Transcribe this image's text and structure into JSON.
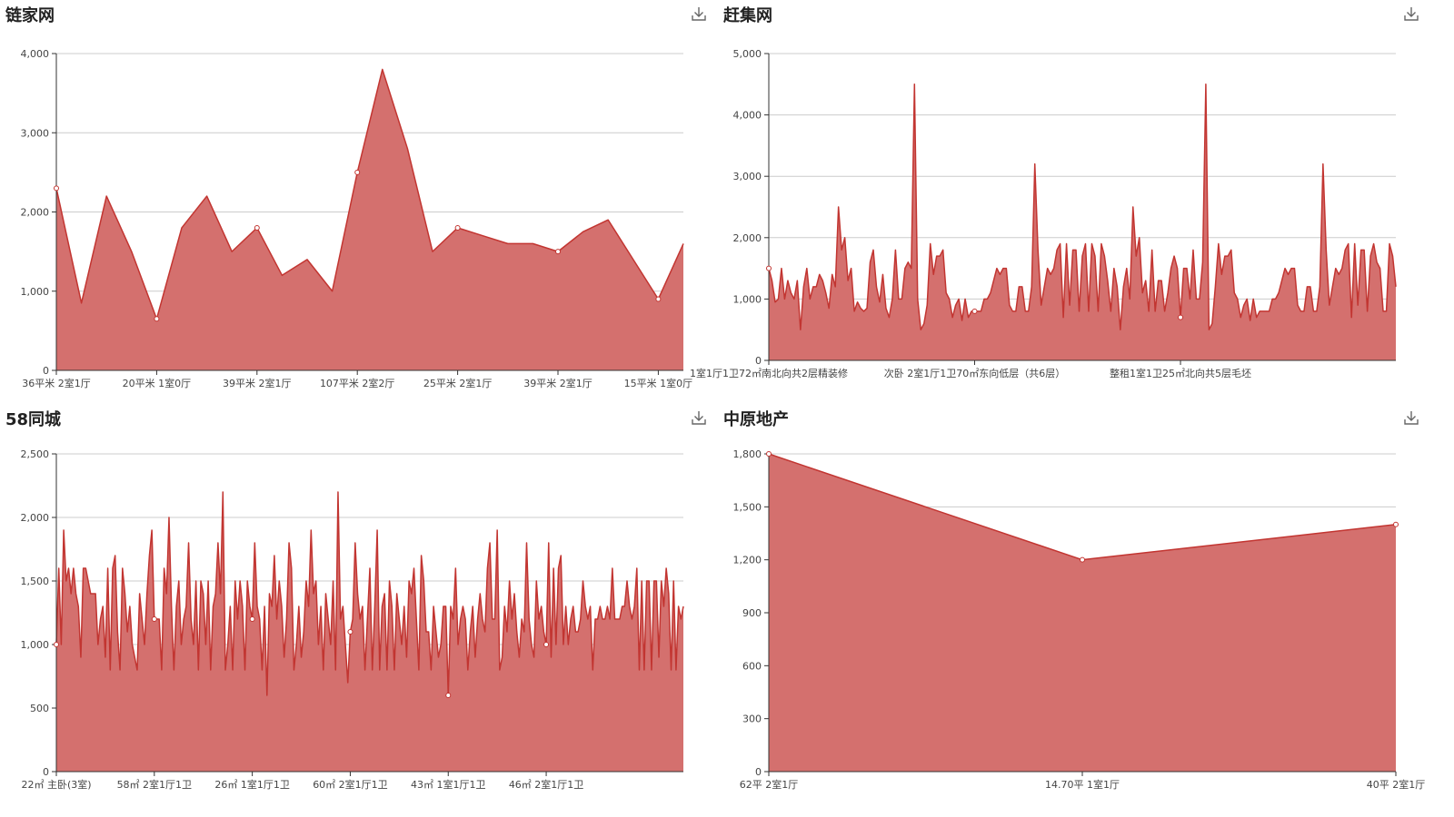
{
  "panels": [
    {
      "title": "链家网",
      "download_icon": "download-icon"
    },
    {
      "title": "赶集网",
      "download_icon": "download-icon"
    },
    {
      "title": "58同城",
      "download_icon": "download-icon"
    },
    {
      "title": "中原地产",
      "download_icon": "download-icon"
    }
  ],
  "colors": {
    "line": "#c23531",
    "area": "#d4706e",
    "grid": "#cccccc",
    "axis": "#333333"
  },
  "chart_data": [
    {
      "type": "area",
      "title": "链家网",
      "ylim": [
        0,
        4000
      ],
      "yticks": [
        0,
        1000,
        2000,
        3000,
        4000
      ],
      "ytick_labels": [
        "0",
        "1,000",
        "2,000",
        "3,000",
        "4,000"
      ],
      "x_labels": [
        {
          "index": 0,
          "text": "36平米 2室1厅"
        },
        {
          "index": 4,
          "text": "20平米 1室0厅"
        },
        {
          "index": 8,
          "text": "39平米 2室1厅"
        },
        {
          "index": 12,
          "text": "107平米 2室2厅"
        },
        {
          "index": 16,
          "text": "25平米 2室1厅"
        },
        {
          "index": 20,
          "text": "39平米 2室1厅"
        },
        {
          "index": 24,
          "text": "15平米 1室0厅"
        }
      ],
      "values": [
        2300,
        850,
        2200,
        1500,
        650,
        1800,
        2200,
        1500,
        1800,
        1200,
        1400,
        1000,
        2500,
        3800,
        2800,
        1500,
        1800,
        1700,
        1600,
        1600,
        1500,
        1750,
        1900,
        1400,
        900,
        1600
      ],
      "markers": [
        0,
        4,
        8,
        12,
        16,
        20,
        24
      ]
    },
    {
      "type": "area",
      "title": "赶集网",
      "ylim": [
        0,
        5000
      ],
      "yticks": [
        0,
        1000,
        2000,
        3000,
        4000,
        5000
      ],
      "ytick_labels": [
        "0",
        "1,000",
        "2,000",
        "3,000",
        "4,000",
        "5,000"
      ],
      "x_labels": [
        {
          "index": 0,
          "text": "1室1厅1卫72㎡南北向共2层精装修"
        },
        {
          "index": 65,
          "text": "次卧 2室1厅1卫70㎡东向低层（共6层）"
        },
        {
          "index": 130,
          "text": "整租1室1卫25㎡北向共5层毛坯"
        }
      ],
      "values": [
        1500,
        1300,
        950,
        1000,
        1500,
        1000,
        1300,
        1100,
        1000,
        1300,
        500,
        1200,
        1500,
        1000,
        1200,
        1200,
        1400,
        1300,
        1100,
        850,
        1400,
        1200,
        2500,
        1800,
        2000,
        1300,
        1500,
        800,
        950,
        850,
        800,
        850,
        1600,
        1800,
        1200,
        950,
        1400,
        850,
        700,
        1000,
        1800,
        1000,
        1000,
        1500,
        1600,
        1500,
        4500,
        1000,
        500,
        600,
        900,
        1900,
        1400,
        1700,
        1700,
        1800,
        1100,
        1000,
        700,
        900,
        1000,
        650,
        1000,
        700,
        800,
        800,
        800,
        800,
        1000,
        1000,
        1100,
        1300,
        1500,
        1400,
        1500,
        1500,
        900,
        800,
        800,
        1200,
        1200,
        800,
        800,
        1200,
        3200,
        1800,
        900,
        1200,
        1500,
        1400,
        1500,
        1800,
        1900,
        700,
        1900,
        900,
        1800,
        1800,
        800,
        1700,
        1900,
        800,
        1900,
        1700,
        800,
        1900,
        1700,
        1300,
        800,
        1500,
        1200,
        500,
        1200,
        1500,
        1000,
        2500,
        1700,
        2000,
        1100,
        1300,
        800,
        1800,
        800,
        1300,
        1300,
        800,
        1100,
        1500,
        1700,
        1500,
        700,
        1500,
        1500,
        1000,
        1800,
        1000,
        1000,
        1600,
        4500,
        500,
        600,
        1200,
        1900,
        1400,
        1700,
        1700,
        1800,
        1100,
        1000,
        700,
        900,
        1000,
        650,
        1000,
        700,
        800,
        800,
        800,
        800,
        1000,
        1000,
        1100,
        1300,
        1500,
        1400,
        1500,
        1500,
        900,
        800,
        800,
        1200,
        1200,
        800,
        800,
        1200,
        3200,
        1800,
        900,
        1200,
        1500,
        1400,
        1500,
        1800,
        1900,
        700,
        1900,
        900,
        1800,
        1800,
        800,
        1700,
        1900,
        1600,
        1500,
        800,
        800,
        1900,
        1700,
        1200
      ],
      "markers": [
        0,
        65,
        130
      ]
    },
    {
      "type": "area",
      "title": "58同城",
      "ylim": [
        0,
        2500
      ],
      "yticks": [
        0,
        500,
        1000,
        1500,
        2000,
        2500
      ],
      "ytick_labels": [
        "0",
        "500",
        "1,000",
        "1,500",
        "2,000",
        "2,500"
      ],
      "x_labels": [
        {
          "index": 0,
          "text": "22㎡ 主卧(3室)"
        },
        {
          "index": 40,
          "text": "58㎡ 2室1厅1卫"
        },
        {
          "index": 80,
          "text": "26㎡ 1室1厅1卫"
        },
        {
          "index": 120,
          "text": "60㎡ 2室1厅1卫"
        },
        {
          "index": 160,
          "text": "43㎡ 1室1厅1卫"
        },
        {
          "index": 200,
          "text": "46㎡ 2室1厅1卫"
        }
      ],
      "values": [
        1000,
        1600,
        1000,
        1900,
        1500,
        1600,
        1400,
        1600,
        1400,
        1300,
        900,
        1600,
        1600,
        1500,
        1400,
        1400,
        1400,
        1000,
        1200,
        1300,
        900,
        1600,
        800,
        1600,
        1700,
        1100,
        800,
        1600,
        1400,
        1100,
        1300,
        1000,
        900,
        800,
        1400,
        1200,
        1000,
        1400,
        1700,
        1900,
        1200,
        1200,
        1200,
        800,
        1600,
        1400,
        2000,
        1300,
        800,
        1300,
        1500,
        1000,
        1200,
        1300,
        1800,
        1200,
        1000,
        1500,
        800,
        1500,
        1400,
        1000,
        1500,
        800,
        1300,
        1400,
        1800,
        1400,
        2200,
        800,
        1000,
        1300,
        800,
        1500,
        1200,
        1500,
        1300,
        800,
        1500,
        1300,
        1200,
        1800,
        1300,
        1200,
        800,
        1300,
        600,
        1400,
        1300,
        1700,
        1200,
        1500,
        1300,
        900,
        1200,
        1800,
        1600,
        800,
        1000,
        1300,
        900,
        1100,
        1500,
        1300,
        1900,
        1400,
        1500,
        1000,
        1300,
        800,
        1400,
        1200,
        1000,
        1500,
        800,
        2200,
        1200,
        1300,
        1000,
        700,
        1100,
        1200,
        1800,
        1400,
        1200,
        1300,
        800,
        1200,
        1600,
        800,
        1300,
        1900,
        800,
        1300,
        1400,
        800,
        1500,
        1300,
        800,
        1400,
        1200,
        1000,
        1300,
        900,
        1500,
        1400,
        1600,
        1200,
        800,
        1700,
        1500,
        1100,
        1100,
        800,
        1300,
        1100,
        900,
        1000,
        1300,
        1300,
        600,
        1300,
        1200,
        1600,
        1000,
        1200,
        1300,
        1200,
        800,
        1100,
        1300,
        900,
        1200,
        1400,
        1200,
        1100,
        1600,
        1800,
        1200,
        1200,
        1900,
        800,
        900,
        1300,
        1100,
        1500,
        1200,
        1400,
        1100,
        900,
        1200,
        1100,
        1800,
        1200,
        1000,
        900,
        1500,
        1200,
        1300,
        1100,
        1000,
        1800,
        900,
        1600,
        1000,
        1600,
        1700,
        1000,
        1300,
        1000,
        1200,
        1300,
        1100,
        1100,
        1200,
        1500,
        1300,
        1200,
        1300,
        800,
        1200,
        1200,
        1300,
        1200,
        1200,
        1300,
        1200,
        1600,
        1200,
        1200,
        1200,
        1300,
        1300,
        1500,
        1300,
        1200,
        1300,
        1600,
        800,
        1500,
        800,
        1500,
        1500,
        800,
        1500,
        1500,
        900,
        1500,
        1300,
        1600,
        1400,
        800,
        1500,
        800,
        1300,
        1200,
        1300
      ],
      "markers": [
        0,
        40,
        80,
        120,
        160,
        200
      ]
    },
    {
      "type": "area",
      "title": "中原地产",
      "ylim": [
        0,
        1800
      ],
      "yticks": [
        0,
        300,
        600,
        900,
        1200,
        1500,
        1800
      ],
      "ytick_labels": [
        "0",
        "300",
        "600",
        "900",
        "1,200",
        "1,500",
        "1,800"
      ],
      "x_labels": [
        {
          "index": 0,
          "text": "62平 2室1厅"
        },
        {
          "index": 1,
          "text": "14.70平 1室1厅"
        },
        {
          "index": 2,
          "text": "40平 2室1厅"
        }
      ],
      "values": [
        1800,
        1200,
        1400
      ],
      "markers": [
        0,
        1,
        2
      ]
    }
  ]
}
